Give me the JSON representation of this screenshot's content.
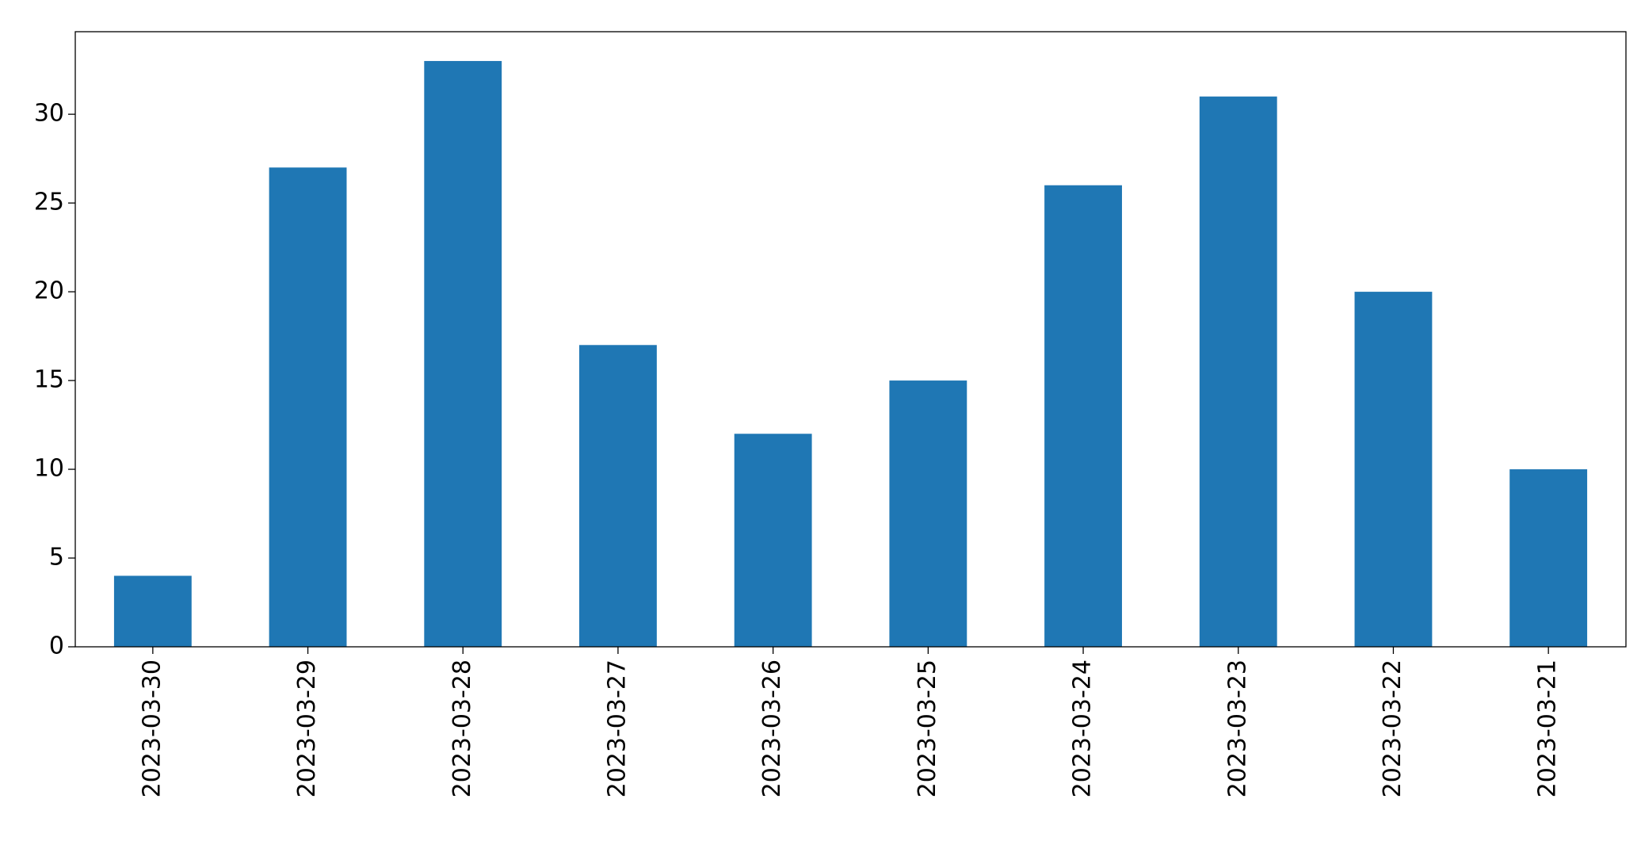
{
  "chart_data": {
    "type": "bar",
    "categories": [
      "2023-03-30",
      "2023-03-29",
      "2023-03-28",
      "2023-03-27",
      "2023-03-26",
      "2023-03-25",
      "2023-03-24",
      "2023-03-23",
      "2023-03-22",
      "2023-03-21"
    ],
    "values": [
      4,
      27,
      33,
      17,
      12,
      15,
      26,
      31,
      20,
      10
    ],
    "color": "#1f77b4",
    "ylim": [
      0,
      34.65
    ],
    "yticks": [
      0,
      5,
      10,
      15,
      20,
      25,
      30
    ],
    "grid": false
  }
}
